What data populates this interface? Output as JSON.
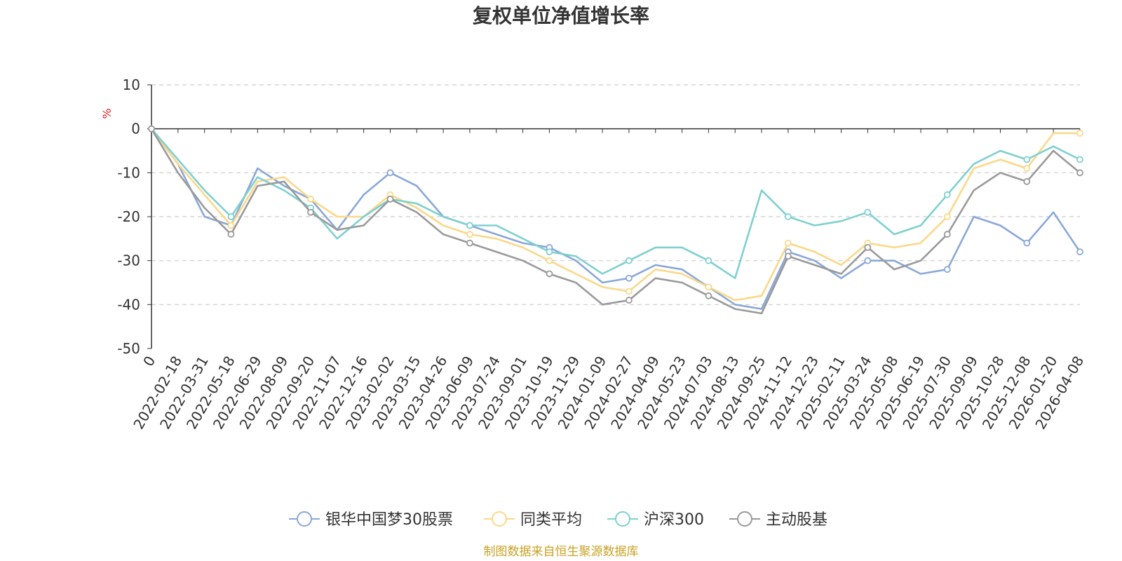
{
  "chart_data": {
    "type": "line",
    "title": "复权单位净值增长率",
    "ylabel": "%",
    "ylim": [
      -50,
      10
    ],
    "yticks": [
      10,
      0,
      -10,
      -20,
      -30,
      -40,
      -50
    ],
    "xlabels": [
      "0",
      "2022-02-18",
      "2022-03-31",
      "2022-05-18",
      "2022-06-29",
      "2022-08-09",
      "2022-09-20",
      "2022-11-07",
      "2022-12-16",
      "2023-02-02",
      "2023-03-15",
      "2023-04-26",
      "2023-06-09",
      "2023-07-24",
      "2023-09-01",
      "2023-10-19",
      "2023-11-29",
      "2024-01-09",
      "2024-02-27",
      "2024-04-09",
      "2024-05-23",
      "2024-07-03",
      "2024-08-13",
      "2024-09-25",
      "2024-11-12",
      "2024-12-23",
      "2025-02-11",
      "2025-03-24",
      "2025-05-08",
      "2025-06-19",
      "2025-07-30",
      "2025-09-09",
      "2025-10-28",
      "2025-12-08",
      "2026-01-20",
      "2026-04-08"
    ],
    "series": [
      {
        "name": "银华中国梦30股票",
        "color": "#8aa8d8",
        "values": [
          0,
          -8,
          -20,
          -22,
          -9,
          -13,
          -16,
          -23,
          -15,
          -10,
          -13,
          -20,
          -22,
          -24,
          -26,
          -27,
          -30,
          -35,
          -34,
          -31,
          -32,
          -36,
          -40,
          -41,
          -28,
          -30,
          -34,
          -30,
          -30,
          -33,
          -32,
          -20,
          -22,
          -26,
          -19,
          -28
        ]
      },
      {
        "name": "同类平均",
        "color": "#fbd889",
        "values": [
          0,
          -8,
          -15,
          -22,
          -12,
          -11,
          -16,
          -20,
          -20,
          -15,
          -18,
          -22,
          -24,
          -25,
          -27,
          -30,
          -33,
          -36,
          -37,
          -32,
          -33,
          -36,
          -39,
          -38,
          -26,
          -28,
          -31,
          -26,
          -27,
          -26,
          -20,
          -9,
          -7,
          -9,
          -1,
          -1
        ]
      },
      {
        "name": "沪深300",
        "color": "#7fd0d0",
        "values": [
          0,
          -7,
          -14,
          -20,
          -11,
          -14,
          -18,
          -25,
          -20,
          -16,
          -17,
          -20,
          -22,
          -22,
          -25,
          -28,
          -29,
          -33,
          -30,
          -27,
          -27,
          -30,
          -34,
          -14,
          -20,
          -22,
          -21,
          -19,
          -24,
          -22,
          -15,
          -8,
          -5,
          -7,
          -4,
          -7
        ]
      },
      {
        "name": "主动股基",
        "color": "#9a9a9a",
        "values": [
          0,
          -10,
          -18,
          -24,
          -13,
          -12,
          -19,
          -23,
          -22,
          -16,
          -19,
          -24,
          -26,
          -28,
          -30,
          -33,
          -35,
          -40,
          -39,
          -34,
          -35,
          -38,
          -41,
          -42,
          -29,
          -31,
          -33,
          -27,
          -32,
          -30,
          -24,
          -14,
          -10,
          -12,
          -5,
          -10
        ]
      }
    ]
  },
  "source": "制图数据来自恒生聚源数据库"
}
